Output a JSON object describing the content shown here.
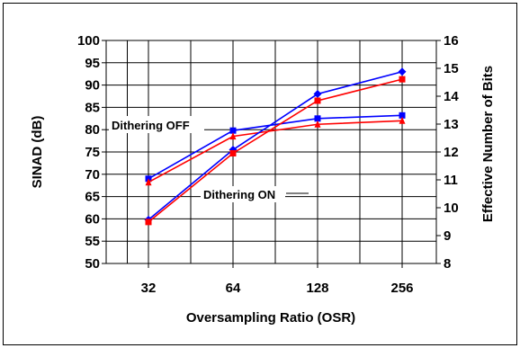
{
  "chart_data": {
    "type": "line",
    "title": "",
    "xlabel": "Oversampling Ratio (OSR)",
    "ylabel": "SINAD (dB)",
    "y2label": "Effective Number of Bits",
    "categories": [
      "32",
      "64",
      "128",
      "256"
    ],
    "ylim": [
      50,
      100
    ],
    "y_ticks": [
      "50",
      "55",
      "60",
      "65",
      "70",
      "75",
      "80",
      "85",
      "90",
      "95",
      "100"
    ],
    "y2lim": [
      8,
      16
    ],
    "y2_ticks": [
      "8",
      "9",
      "10",
      "11",
      "12",
      "13",
      "14",
      "15",
      "16"
    ],
    "grid": true,
    "annotations": [
      {
        "text": "Dithering OFF",
        "target": "upper curves"
      },
      {
        "text": "Dithering ON",
        "target": "lower curves"
      }
    ],
    "series": [
      {
        "group": "Dithering OFF",
        "color": "#0000ff",
        "marker": "square",
        "values": [
          69,
          79.8,
          82.5,
          83.2
        ]
      },
      {
        "group": "Dithering OFF",
        "color": "#ff0000",
        "marker": "triangle",
        "values": [
          68.2,
          78.5,
          81.2,
          82
        ]
      },
      {
        "group": "Dithering ON",
        "color": "#0000ff",
        "marker": "diamond",
        "values": [
          59.8,
          75.5,
          88,
          93
        ]
      },
      {
        "group": "Dithering ON",
        "color": "#ff0000",
        "marker": "square",
        "values": [
          59.3,
          74.7,
          86.5,
          91.3
        ]
      }
    ]
  }
}
